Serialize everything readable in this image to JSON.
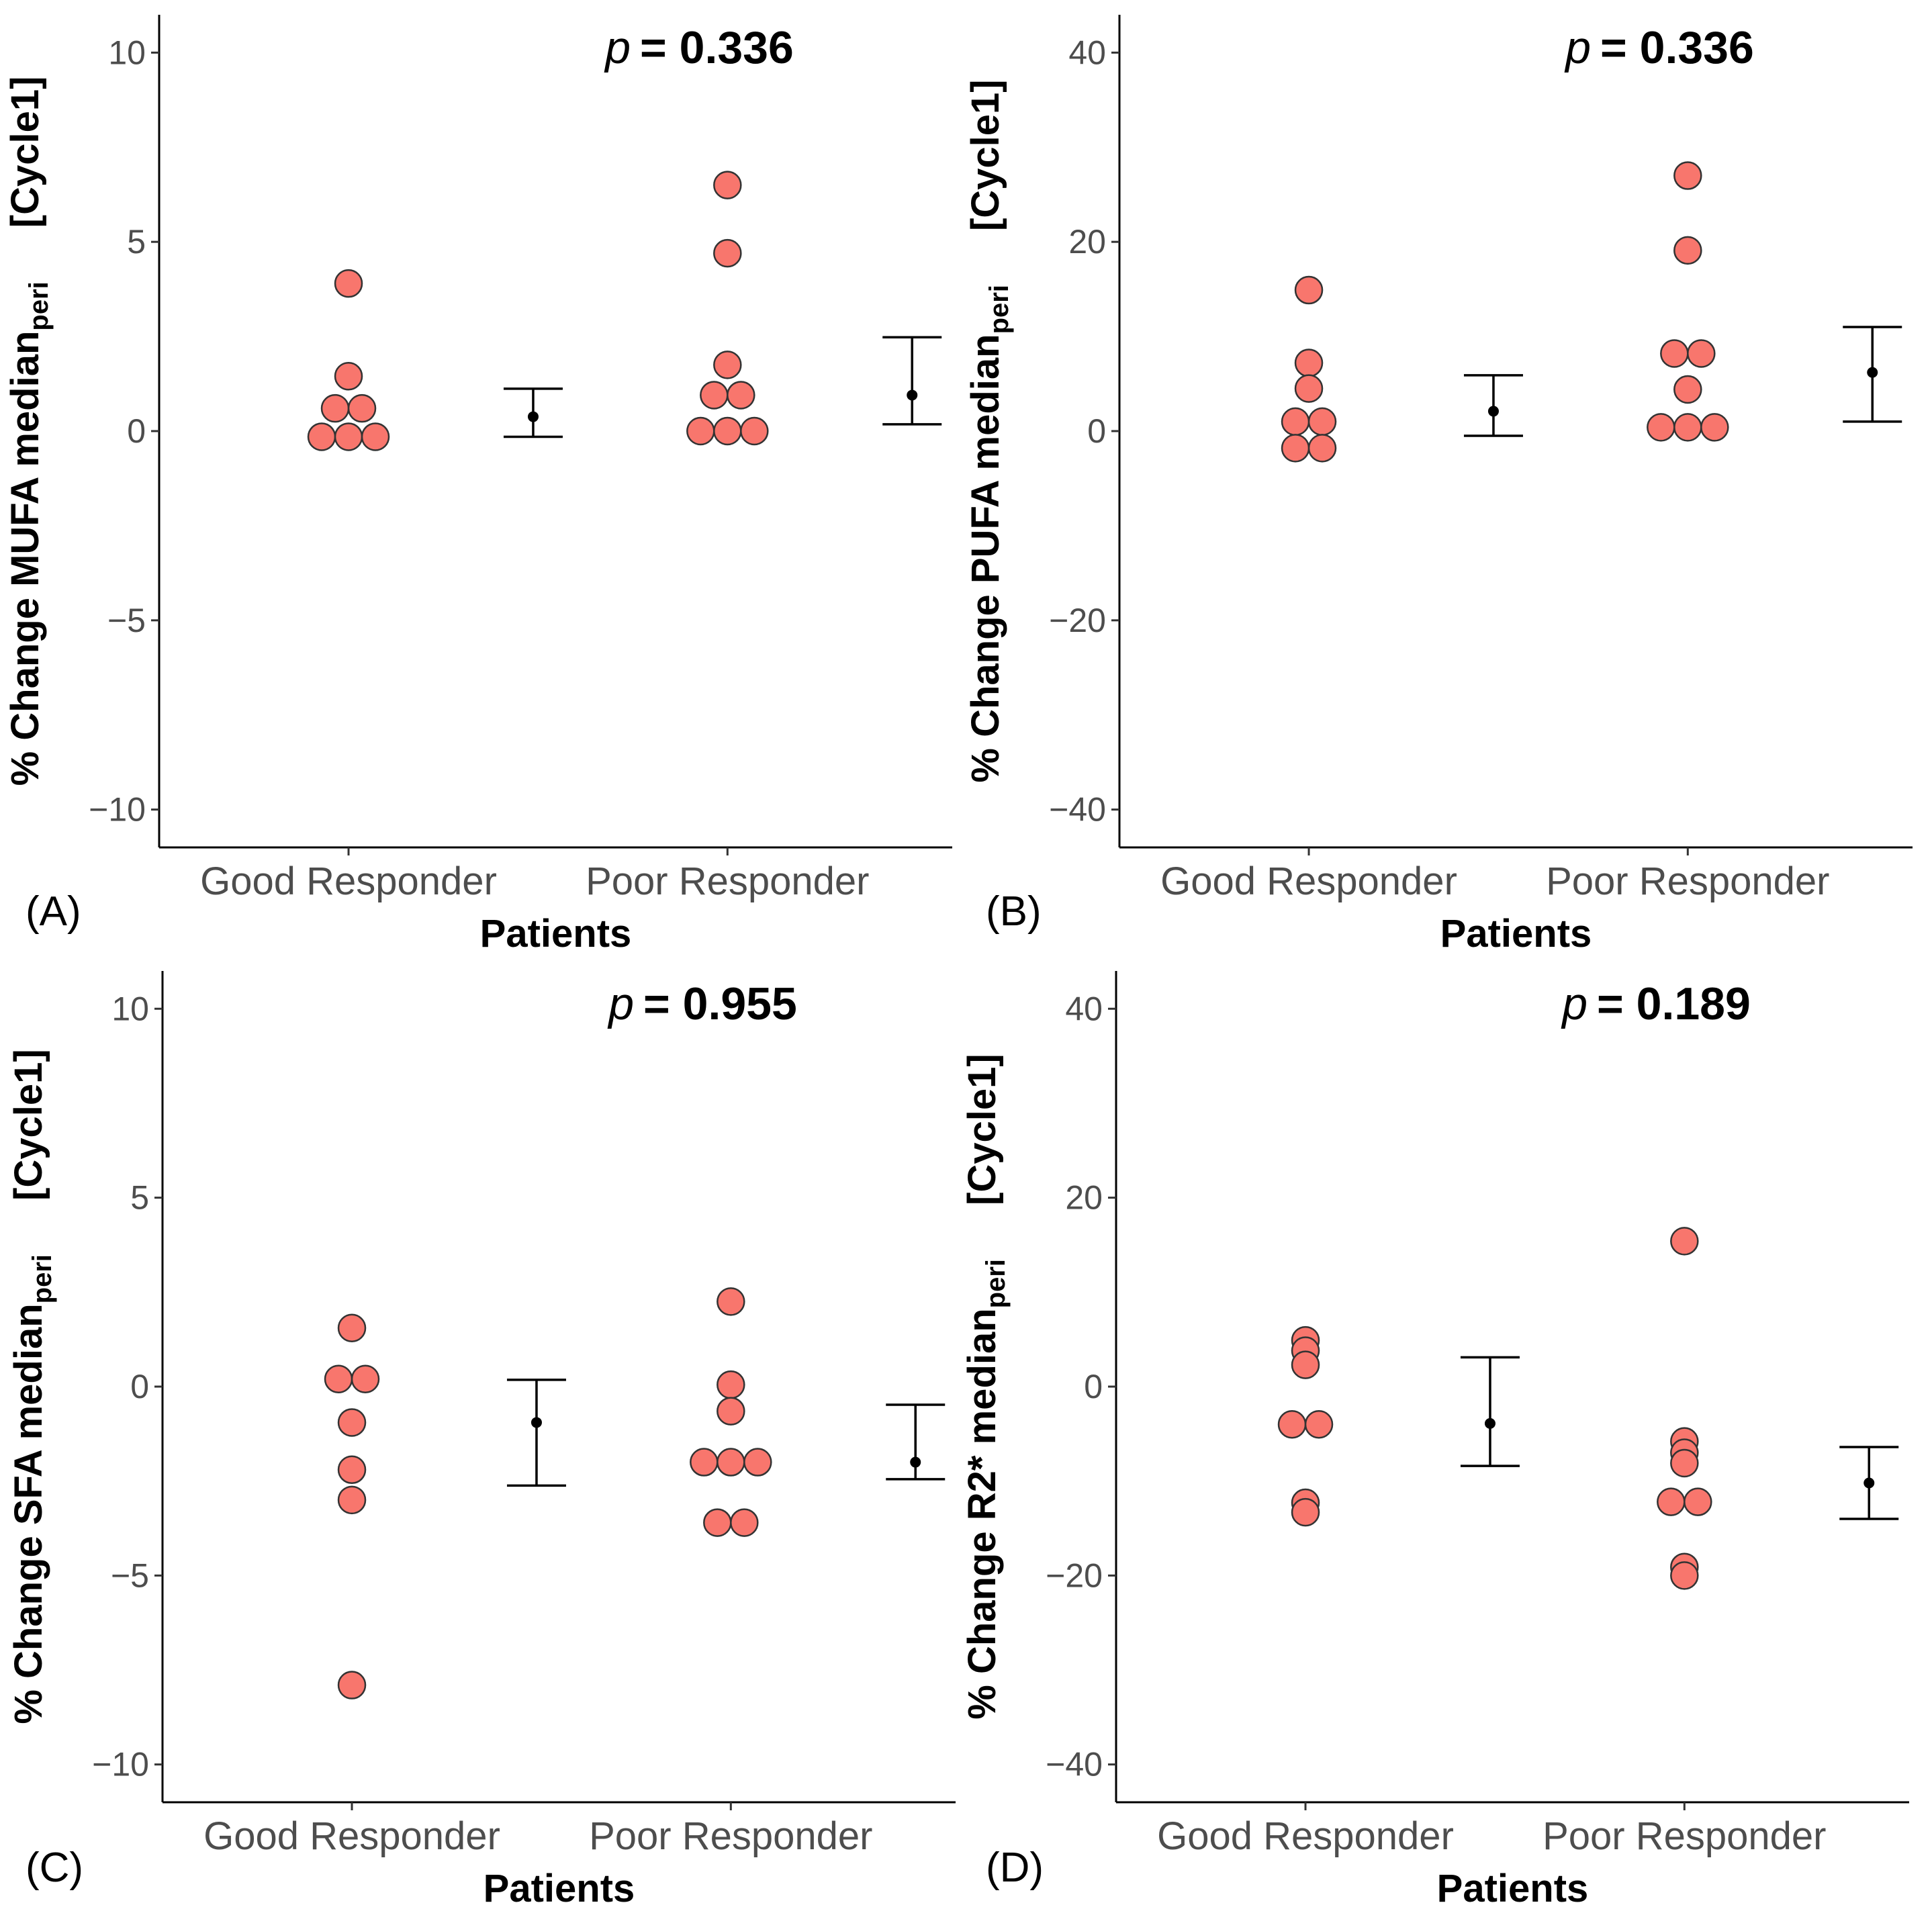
{
  "colors": {
    "point_fill": "#f8766d",
    "point_stroke": "#333333",
    "summary": "#000000"
  },
  "chart_data": [
    {
      "panel_label": "(A)",
      "type": "scatter",
      "title": "",
      "ylabel_main": "% Change MUFA median",
      "ylabel_sub": "peri",
      "ylabel_suffix": "[Cycle1]",
      "xlabel": "Patients",
      "categories": [
        "Good Responder",
        "Poor Responder"
      ],
      "ylim": [
        -11,
        11
      ],
      "yticks": [
        -10,
        -5,
        0,
        5,
        10
      ],
      "ytick_labels": [
        "−10",
        "−5",
        "0",
        "5",
        "10"
      ],
      "p_label": "p",
      "p_value": "= 0.336",
      "series": [
        {
          "name": "Good Responder",
          "points": [
            {
              "dx": 0,
              "y": 3.9
            },
            {
              "dx": 0,
              "y": 1.45
            },
            {
              "dx": -0.5,
              "y": 0.6
            },
            {
              "dx": 0.5,
              "y": 0.6
            },
            {
              "dx": -1,
              "y": -0.15
            },
            {
              "dx": 0,
              "y": -0.15
            },
            {
              "dx": 1,
              "y": -0.15
            }
          ]
        },
        {
          "name": "Poor Responder",
          "points": [
            {
              "dx": 0,
              "y": 6.5
            },
            {
              "dx": 0,
              "y": 4.7
            },
            {
              "dx": 0,
              "y": 1.75
            },
            {
              "dx": -0.5,
              "y": 0.95
            },
            {
              "dx": 0.5,
              "y": 0.95
            },
            {
              "dx": -1,
              "y": 0.0
            },
            {
              "dx": 0,
              "y": 0.0
            },
            {
              "dx": 1,
              "y": 0.0
            }
          ]
        }
      ],
      "summary": [
        {
          "name": "Good Responder",
          "mean": 0.38,
          "lower": -0.15,
          "upper": 1.12
        },
        {
          "name": "Poor Responder",
          "mean": 0.95,
          "lower": 0.18,
          "upper": 2.48
        }
      ]
    },
    {
      "panel_label": "(B)",
      "type": "scatter",
      "title": "",
      "ylabel_main": "% Change PUFA median",
      "ylabel_sub": "peri",
      "ylabel_suffix": "[Cycle1]",
      "xlabel": "Patients",
      "categories": [
        "Good Responder",
        "Poor Responder"
      ],
      "ylim": [
        -44,
        44
      ],
      "yticks": [
        -40,
        -20,
        0,
        20,
        40
      ],
      "ytick_labels": [
        "−40",
        "−20",
        "0",
        "20",
        "40"
      ],
      "p_label": "p",
      "p_value": "= 0.336",
      "series": [
        {
          "name": "Good Responder",
          "points": [
            {
              "dx": 0,
              "y": 14.9
            },
            {
              "dx": 0,
              "y": 7.2
            },
            {
              "dx": 0,
              "y": 4.5
            },
            {
              "dx": -0.5,
              "y": 1.0
            },
            {
              "dx": 0.5,
              "y": 1.0
            },
            {
              "dx": -0.5,
              "y": -1.8
            },
            {
              "dx": 0.5,
              "y": -1.8
            }
          ]
        },
        {
          "name": "Poor Responder",
          "points": [
            {
              "dx": 0,
              "y": 27.0
            },
            {
              "dx": 0,
              "y": 19.1
            },
            {
              "dx": -0.5,
              "y": 8.2
            },
            {
              "dx": 0.5,
              "y": 8.2
            },
            {
              "dx": 0,
              "y": 4.4
            },
            {
              "dx": -1,
              "y": 0.4
            },
            {
              "dx": 0,
              "y": 0.4
            },
            {
              "dx": 1,
              "y": 0.4
            }
          ]
        }
      ],
      "summary": [
        {
          "name": "Good Responder",
          "mean": 2.1,
          "lower": -0.5,
          "upper": 5.9
        },
        {
          "name": "Poor Responder",
          "mean": 6.2,
          "lower": 1.0,
          "upper": 11.0
        }
      ]
    },
    {
      "panel_label": "(C)",
      "type": "scatter",
      "title": "",
      "ylabel_main": "% Change SFA median",
      "ylabel_sub": "peri",
      "ylabel_suffix": "[Cycle1]",
      "xlabel": "Patients",
      "categories": [
        "Good Responder",
        "Poor Responder"
      ],
      "ylim": [
        -11,
        11
      ],
      "yticks": [
        -10,
        -5,
        0,
        5,
        10
      ],
      "ytick_labels": [
        "−10",
        "−5",
        "0",
        "5",
        "10"
      ],
      "p_label": "p",
      "p_value": "= 0.955",
      "series": [
        {
          "name": "Good Responder",
          "points": [
            {
              "dx": 0,
              "y": 1.55
            },
            {
              "dx": -0.5,
              "y": 0.2
            },
            {
              "dx": 0.5,
              "y": 0.2
            },
            {
              "dx": 0,
              "y": -0.95
            },
            {
              "dx": 0,
              "y": -2.2
            },
            {
              "dx": 0,
              "y": -3.0
            },
            {
              "dx": 0,
              "y": -7.9
            }
          ]
        },
        {
          "name": "Poor Responder",
          "points": [
            {
              "dx": 0,
              "y": 2.25
            },
            {
              "dx": 0,
              "y": 0.05
            },
            {
              "dx": 0,
              "y": -0.65
            },
            {
              "dx": -1,
              "y": -2.0
            },
            {
              "dx": 0,
              "y": -2.0
            },
            {
              "dx": 1,
              "y": -2.0
            },
            {
              "dx": -0.5,
              "y": -3.6
            },
            {
              "dx": 0.5,
              "y": -3.6
            }
          ]
        }
      ],
      "summary": [
        {
          "name": "Good Responder",
          "mean": -0.95,
          "lower": -2.62,
          "upper": 0.18
        },
        {
          "name": "Poor Responder",
          "mean": -2.0,
          "lower": -2.45,
          "upper": -0.48
        }
      ]
    },
    {
      "panel_label": "(D)",
      "type": "scatter",
      "title": "",
      "ylabel_main": "% Change R2* median",
      "ylabel_sub": "peri",
      "ylabel_suffix": "[Cycle1]",
      "xlabel": "Patients",
      "categories": [
        "Good Responder",
        "Poor Responder"
      ],
      "ylim": [
        -44,
        44
      ],
      "yticks": [
        -40,
        -20,
        0,
        20,
        40
      ],
      "ytick_labels": [
        "−40",
        "−20",
        "0",
        "20",
        "40"
      ],
      "p_label": "p",
      "p_value": "= 0.189",
      "series": [
        {
          "name": "Good Responder",
          "points": [
            {
              "dx": 0,
              "y": 4.9
            },
            {
              "dx": 0,
              "y": 3.8
            },
            {
              "dx": 0,
              "y": 2.3
            },
            {
              "dx": -0.5,
              "y": -4.0
            },
            {
              "dx": 0.5,
              "y": -4.0
            },
            {
              "dx": 0,
              "y": -12.3
            },
            {
              "dx": 0,
              "y": -13.3
            }
          ]
        },
        {
          "name": "Poor Responder",
          "points": [
            {
              "dx": 0,
              "y": 15.4
            },
            {
              "dx": 0,
              "y": -5.8
            },
            {
              "dx": 0,
              "y": -7.0
            },
            {
              "dx": 0,
              "y": -8.1
            },
            {
              "dx": -0.5,
              "y": -12.2
            },
            {
              "dx": 0.5,
              "y": -12.2
            },
            {
              "dx": 0,
              "y": -19.1
            },
            {
              "dx": 0,
              "y": -20.0
            }
          ]
        }
      ],
      "summary": [
        {
          "name": "Good Responder",
          "mean": -3.9,
          "lower": -8.4,
          "upper": 3.1
        },
        {
          "name": "Poor Responder",
          "mean": -10.2,
          "lower": -14.0,
          "upper": -6.4
        }
      ]
    }
  ]
}
